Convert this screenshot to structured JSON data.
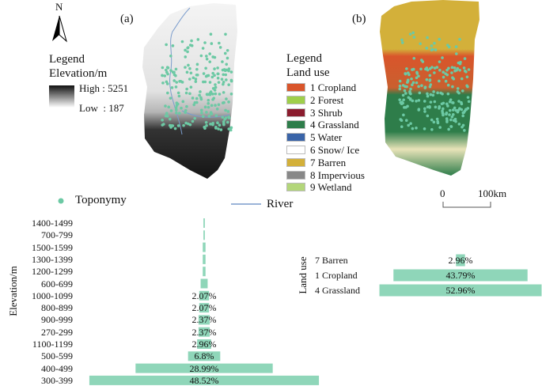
{
  "panels": {
    "a_label": "(a)",
    "b_label": "(b)",
    "north": "N"
  },
  "elevation_legend": {
    "title": "Legend",
    "subtitle": "Elevation/m",
    "high": "High : 5251",
    "low": "Low  : 187"
  },
  "landuse_legend": {
    "title": "Legend",
    "subtitle": "Land use",
    "items": [
      {
        "label": "1 Cropland",
        "color": "#d9552b"
      },
      {
        "label": "2 Forest",
        "color": "#9fcf4a"
      },
      {
        "label": "3 Shrub",
        "color": "#8b1c2e"
      },
      {
        "label": "4 Grassland",
        "color": "#2e7d4a"
      },
      {
        "label": "5 Water",
        "color": "#3a64a8"
      },
      {
        "label": "6 Snow/ Ice",
        "color": "#ffffff"
      },
      {
        "label": "7 Barren",
        "color": "#d3b03a"
      },
      {
        "label": "8 Impervious",
        "color": "#888888"
      },
      {
        "label": "9 Wetland",
        "color": "#b3d67a"
      }
    ]
  },
  "symbols": {
    "toponymy": "Toponymy",
    "river": "River",
    "toponymy_color": "#6cc9a4",
    "river_color": "#7a9ccc"
  },
  "scale_bar": {
    "zero": "0",
    "end": "100km"
  },
  "chart_data": [
    {
      "type": "bar",
      "orientation": "horizontal-centered",
      "ylabel": "Elevation/m",
      "categories": [
        "1400-1499",
        "700-799",
        "1500-1599",
        "1300-1399",
        "1200-1299",
        "600-699",
        "1000-1099",
        "800-899",
        "900-999",
        "270-299",
        "1100-1199",
        "500-599",
        "400-499",
        "300-399"
      ],
      "values": [
        0.3,
        0.3,
        0.59,
        0.59,
        0.59,
        1.48,
        2.07,
        2.07,
        2.37,
        2.37,
        2.96,
        6.8,
        28.99,
        48.52
      ],
      "labels": [
        "",
        "",
        "",
        "",
        "",
        "",
        "2.07%",
        "2.07%",
        "2.37%",
        "2.37%",
        "2.96%",
        "6.8%",
        "28.99%",
        "48.52%"
      ],
      "unit": "%",
      "color": "#8fd6b9"
    },
    {
      "type": "bar",
      "orientation": "horizontal-centered",
      "ylabel": "Land use",
      "categories": [
        "7 Barren",
        "1 Cropland",
        "4 Grassland"
      ],
      "values": [
        2.96,
        43.79,
        52.96
      ],
      "labels": [
        "2.96%",
        "43.79%",
        "52.96%"
      ],
      "unit": "%",
      "color": "#8fd6b9"
    }
  ]
}
